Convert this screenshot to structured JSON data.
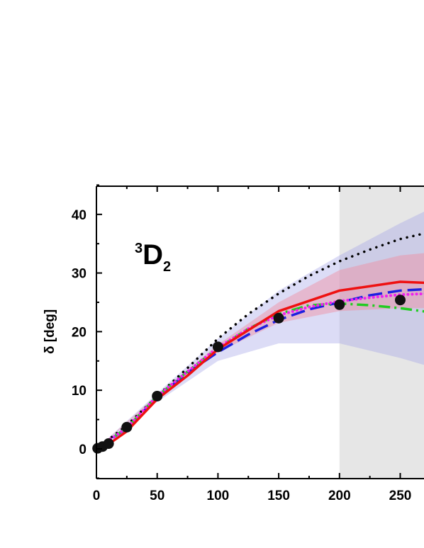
{
  "chart_data": {
    "type": "line",
    "title": "",
    "annotation": {
      "sup": "3",
      "main": "D",
      "sub": "2"
    },
    "xlabel": "",
    "ylabel": "δ [deg]",
    "xlim": [
      0,
      275
    ],
    "ylim": [
      -5,
      45
    ],
    "xticks": [
      0,
      50,
      100,
      150,
      200,
      250
    ],
    "yticks": [
      0,
      10,
      20,
      30,
      40
    ],
    "shaded_region_x": [
      200,
      275
    ],
    "bands": [
      {
        "color": "#9c9ce6",
        "opacity": 0.35,
        "x": [
          0,
          50,
          100,
          150,
          200,
          250,
          275
        ],
        "lower": [
          0,
          8.0,
          15.0,
          18.0,
          18.0,
          15.5,
          14.0
        ],
        "upper": [
          0,
          9.5,
          18.8,
          27.0,
          33.0,
          38.5,
          41.0
        ]
      },
      {
        "color": "#f08ca0",
        "opacity": 0.45,
        "x": [
          0,
          50,
          100,
          150,
          200,
          250,
          275
        ],
        "lower": [
          0,
          8.6,
          16.5,
          21.5,
          23.5,
          24.0,
          24.0
        ],
        "upper": [
          0,
          9.2,
          17.8,
          25.0,
          30.5,
          33.0,
          33.5
        ]
      }
    ],
    "series": [
      {
        "style": "dotted",
        "color": "#000000",
        "x": [
          0,
          25,
          50,
          75,
          100,
          125,
          150,
          175,
          200,
          225,
          250,
          275
        ],
        "y": [
          0,
          4.0,
          9.0,
          13.8,
          18.8,
          23.0,
          26.5,
          29.5,
          32.0,
          34.0,
          35.8,
          37.0
        ]
      },
      {
        "style": "dashed",
        "color": "#1f1fe0",
        "x": [
          0,
          25,
          50,
          75,
          100,
          125,
          150,
          175,
          200,
          225,
          250,
          275
        ],
        "y": [
          0,
          3.5,
          8.8,
          13.0,
          16.5,
          19.5,
          22.0,
          23.8,
          25.0,
          26.2,
          27.0,
          27.3
        ]
      },
      {
        "style": "dashdot",
        "color": "#22cc22",
        "x": [
          0,
          25,
          50,
          75,
          100,
          125,
          150,
          175,
          200,
          225,
          250,
          275
        ],
        "y": [
          0,
          3.6,
          9.0,
          13.2,
          17.2,
          20.5,
          23.0,
          24.5,
          24.8,
          24.5,
          24.0,
          23.3
        ]
      },
      {
        "style": "dotted-thick",
        "color": "#ee22ee",
        "x": [
          0,
          25,
          50,
          75,
          100,
          125,
          150,
          175,
          200,
          225,
          250,
          275
        ],
        "y": [
          0,
          3.6,
          9.0,
          13.2,
          17.3,
          20.5,
          22.8,
          24.2,
          25.2,
          25.8,
          26.3,
          26.5
        ]
      },
      {
        "style": "solid",
        "color": "#ee1111",
        "x": [
          0,
          10,
          25,
          50,
          75,
          100,
          150,
          200,
          250,
          275
        ],
        "y": [
          0,
          0.8,
          3.0,
          8.5,
          12.5,
          17.0,
          23.5,
          27.0,
          28.5,
          28.3
        ]
      }
    ],
    "points": {
      "color": "#111111",
      "x": [
        1,
        5,
        10,
        25,
        50,
        100,
        150,
        200,
        250
      ],
      "y": [
        0.1,
        0.4,
        0.9,
        3.7,
        9.0,
        17.4,
        22.3,
        24.6,
        25.4
      ]
    }
  }
}
